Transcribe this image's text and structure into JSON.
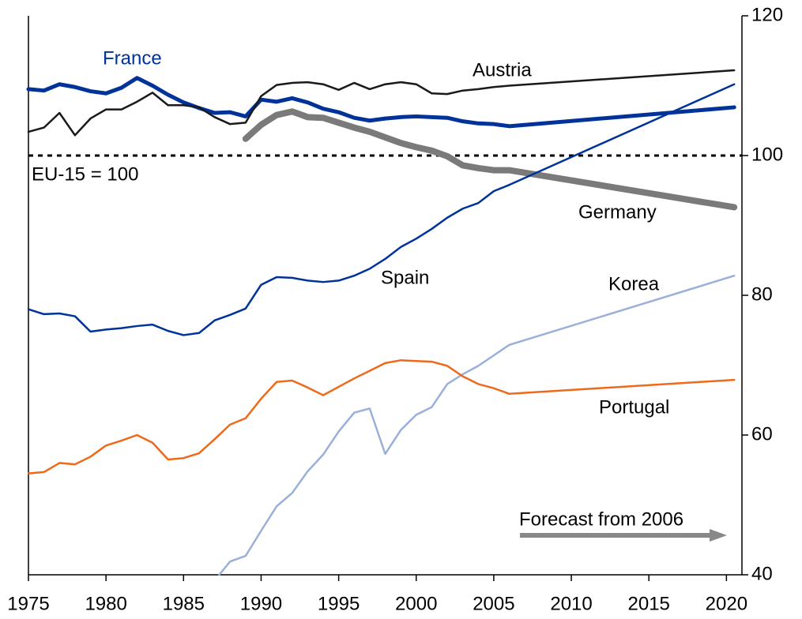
{
  "chart_data": {
    "type": "line",
    "xlim": [
      1975,
      2021
    ],
    "xticks": [
      1975,
      1980,
      1985,
      1990,
      1995,
      2000,
      2005,
      2010,
      2015,
      2020
    ],
    "ylim": [
      40,
      120
    ],
    "yticks": [
      40,
      60,
      80,
      100,
      120
    ],
    "reference_line": {
      "value": 100,
      "label": "EU-15 = 100"
    },
    "annotation": "Forecast from 2006",
    "series": [
      {
        "name": "France",
        "color": "#003399",
        "width": 5,
        "x": [
          1975,
          1976,
          1977,
          1978,
          1979,
          1980,
          1981,
          1982,
          1983,
          1984,
          1985,
          1986,
          1987,
          1988,
          1989,
          1990,
          1991,
          1992,
          1993,
          1994,
          1995,
          1996,
          1997,
          1998,
          1999,
          2000,
          2001,
          2002,
          2003,
          2004,
          2005,
          2006,
          2020.5
        ],
        "values": [
          109.5,
          109.3,
          110.2,
          109.8,
          109.2,
          108.9,
          109.7,
          111.1,
          110,
          108.7,
          107.6,
          106.8,
          106.1,
          106.2,
          105.6,
          108,
          107.7,
          108.2,
          107.6,
          106.7,
          106.2,
          105.4,
          105,
          105.3,
          105.5,
          105.6,
          105.5,
          105.4,
          104.9,
          104.6,
          104.5,
          104.2,
          106.9
        ]
      },
      {
        "name": "Austria",
        "color": "#1a1a1a",
        "width": 2.5,
        "x": [
          1975,
          1976,
          1977,
          1978,
          1979,
          1980,
          1981,
          1982,
          1983,
          1984,
          1985,
          1986,
          1987,
          1988,
          1989,
          1990,
          1991,
          1992,
          1993,
          1994,
          1995,
          1996,
          1997,
          1998,
          1999,
          2000,
          2001,
          2002,
          2003,
          2004,
          2005,
          2006,
          2020.5
        ],
        "values": [
          103.4,
          104,
          106.1,
          102.9,
          105.3,
          106.6,
          106.6,
          107.7,
          109,
          107.2,
          107.2,
          106.9,
          105.5,
          104.5,
          104.7,
          108.5,
          110.1,
          110.4,
          110.5,
          110.2,
          109.4,
          110.4,
          109.5,
          110.2,
          110.5,
          110.2,
          108.9,
          108.8,
          109.3,
          109.5,
          109.8,
          110,
          112.2
        ]
      },
      {
        "name": "Germany",
        "color": "#7a7a7a",
        "width": 8,
        "x": [
          1989,
          1990,
          1991,
          1992,
          1993,
          1994,
          1995,
          1996,
          1997,
          1998,
          1999,
          2000,
          2001,
          2002,
          2003,
          2004,
          2005,
          2006,
          2020.5
        ],
        "values": [
          102.4,
          104.4,
          105.8,
          106.3,
          105.5,
          105.4,
          104.7,
          104,
          103.4,
          102.6,
          101.8,
          101.2,
          100.7,
          99.9,
          98.6,
          98.2,
          97.9,
          97.9,
          92.6
        ]
      },
      {
        "name": "Spain",
        "color": "#003399",
        "width": 2.5,
        "x": [
          1975,
          1976,
          1977,
          1978,
          1979,
          1980,
          1981,
          1982,
          1983,
          1984,
          1985,
          1986,
          1987,
          1988,
          1989,
          1990,
          1991,
          1992,
          1993,
          1994,
          1995,
          1996,
          1997,
          1998,
          1999,
          2000,
          2001,
          2002,
          2003,
          2004,
          2005,
          2006,
          2020.5
        ],
        "values": [
          78,
          77.3,
          77.4,
          77,
          74.8,
          75.1,
          75.3,
          75.6,
          75.8,
          74.9,
          74.3,
          74.6,
          76.4,
          77.2,
          78.1,
          81.5,
          82.6,
          82.5,
          82.1,
          81.9,
          82.1,
          82.8,
          83.8,
          85.2,
          86.9,
          88.1,
          89.5,
          91.1,
          92.4,
          93.2,
          94.9,
          95.8,
          110.2
        ]
      },
      {
        "name": "Korea",
        "color": "#9ab0d8",
        "width": 2.5,
        "x": [
          1987.3,
          1988,
          1989,
          1990,
          1991,
          1992,
          1993,
          1994,
          1995,
          1996,
          1997,
          1998,
          1999,
          2000,
          2001,
          2002,
          2003,
          2004,
          2005,
          2006,
          2020.5
        ],
        "values": [
          40,
          41.9,
          42.7,
          46.3,
          49.8,
          51.7,
          54.8,
          57.2,
          60.5,
          63.2,
          63.8,
          57.3,
          60.7,
          62.9,
          64,
          67.3,
          68.7,
          69.9,
          71.4,
          72.9,
          82.8
        ]
      },
      {
        "name": "Portugal",
        "color": "#ee6a1a",
        "width": 2.5,
        "x": [
          1975,
          1976,
          1977,
          1978,
          1979,
          1980,
          1981,
          1982,
          1983,
          1984,
          1985,
          1986,
          1987,
          1988,
          1989,
          1990,
          1991,
          1992,
          1993,
          1994,
          1995,
          1996,
          1997,
          1998,
          1999,
          2000,
          2001,
          2002,
          2003,
          2004,
          2005,
          2006,
          2020.5
        ],
        "values": [
          54.5,
          54.7,
          56,
          55.8,
          56.9,
          58.5,
          59.2,
          60,
          58.9,
          56.5,
          56.7,
          57.4,
          59.4,
          61.5,
          62.4,
          65.2,
          67.6,
          67.8,
          66.8,
          65.7,
          66.9,
          68.1,
          69.2,
          70.3,
          70.7,
          70.6,
          70.5,
          69.9,
          68.4,
          67.3,
          66.7,
          65.9,
          67.9
        ]
      }
    ]
  }
}
